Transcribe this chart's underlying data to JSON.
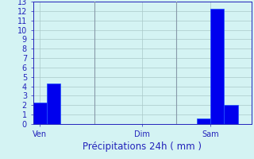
{
  "title": "Précipitations 24h ( mm )",
  "bar_positions": [
    0.5,
    1.5,
    12.5,
    13.5,
    14.5
  ],
  "bar_heights": [
    2.3,
    4.3,
    0.6,
    12.2,
    2.0
  ],
  "bar_color": "#0000ee",
  "bar_edge_color": "#2255ff",
  "xlim": [
    0,
    16
  ],
  "ylim": [
    0,
    13
  ],
  "yticks": [
    0,
    1,
    2,
    3,
    4,
    5,
    6,
    7,
    8,
    9,
    10,
    11,
    12,
    13
  ],
  "xtick_positions": [
    0.5,
    8.0,
    13.0
  ],
  "xtick_labels": [
    "Ven",
    "Dim",
    "Sam"
  ],
  "vline_positions": [
    4.5,
    10.5
  ],
  "background_color": "#d4f3f3",
  "grid_color": "#aac8c8",
  "text_color": "#2222bb",
  "bar_width": 1.0,
  "title_fontsize": 8.5,
  "tick_fontsize": 7
}
